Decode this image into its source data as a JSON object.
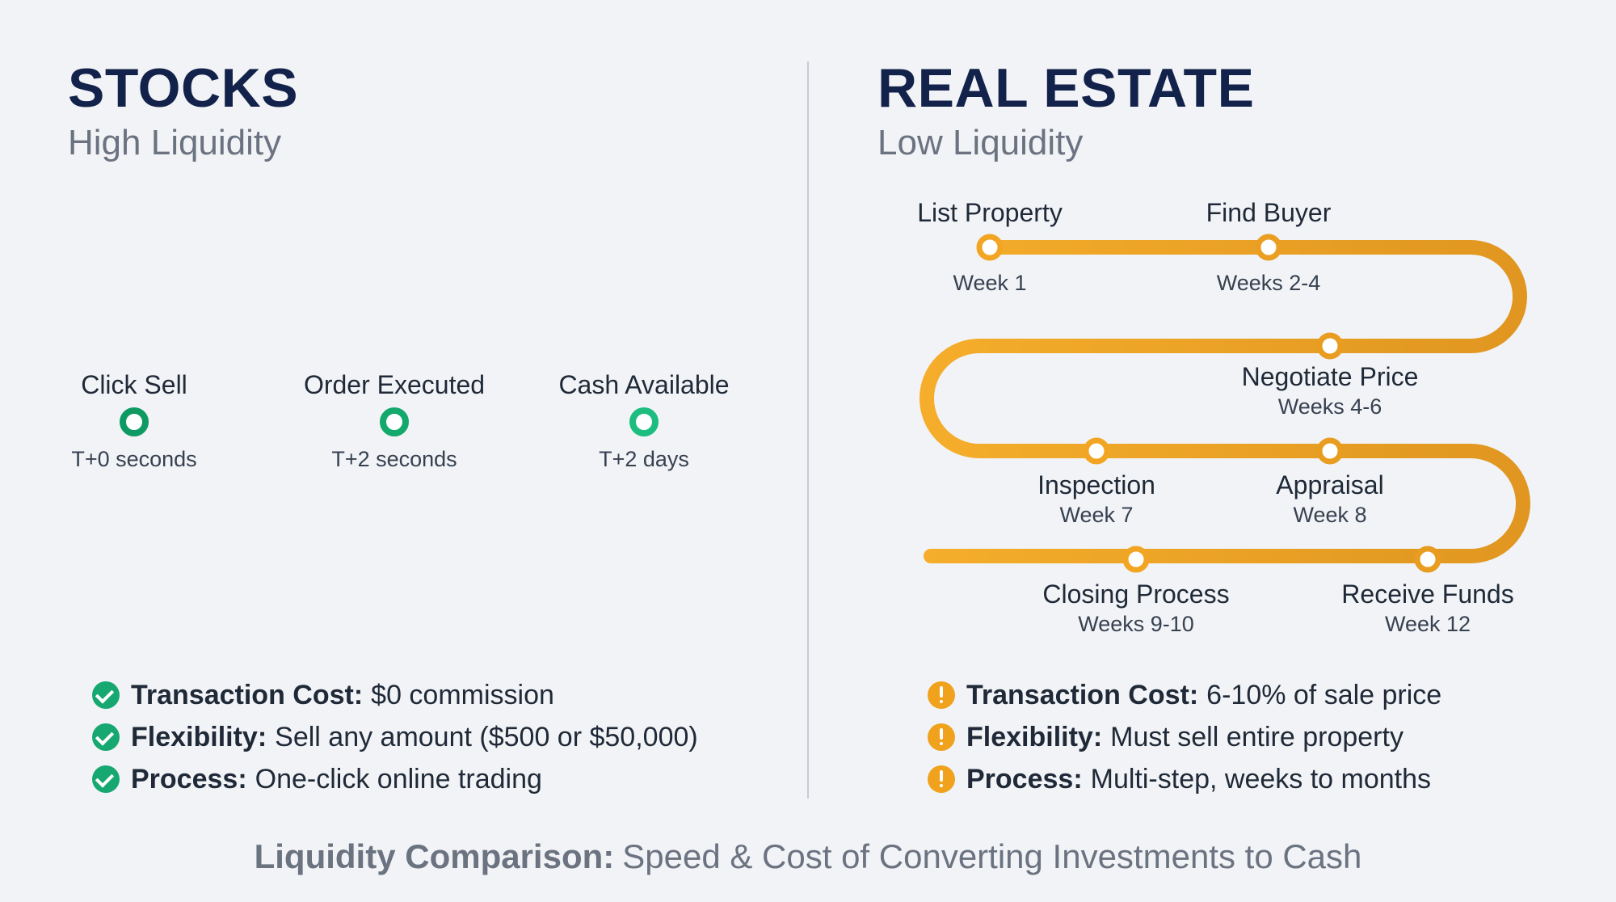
{
  "stocks": {
    "title": "STOCKS",
    "subtitle": "High Liquidity",
    "accent": "#16a870",
    "steps": [
      {
        "label": "Click Sell",
        "time": "T+0 seconds"
      },
      {
        "label": "Order Executed",
        "time": "T+2 seconds"
      },
      {
        "label": "Cash Available",
        "time": "T+2 days"
      }
    ],
    "bullets": [
      {
        "icon": "check-circle-icon",
        "term": "Transaction Cost:",
        "text": "$0 commission"
      },
      {
        "icon": "check-circle-icon",
        "term": "Flexibility:",
        "text": "Sell any amount ($500 or $50,000)"
      },
      {
        "icon": "check-circle-icon",
        "term": "Process:",
        "text": "One-click online trading"
      }
    ]
  },
  "real_estate": {
    "title": "REAL ESTATE",
    "subtitle": "Low Liquidity",
    "accent": "#f0a21c",
    "steps": [
      {
        "label": "List Property",
        "time": "Week 1"
      },
      {
        "label": "Find Buyer",
        "time": "Weeks 2-4"
      },
      {
        "label": "Negotiate Price",
        "time": "Weeks 4-6"
      },
      {
        "label": "Inspection",
        "time": "Week 7"
      },
      {
        "label": "Appraisal",
        "time": "Week 8"
      },
      {
        "label": "Closing Process",
        "time": "Weeks 9-10"
      },
      {
        "label": "Receive Funds",
        "time": "Week 12"
      }
    ],
    "bullets": [
      {
        "icon": "exclamation-circle-icon",
        "term": "Transaction Cost:",
        "text": "6-10% of sale price"
      },
      {
        "icon": "exclamation-circle-icon",
        "term": "Flexibility:",
        "text": "Must sell entire property"
      },
      {
        "icon": "exclamation-circle-icon",
        "term": "Process:",
        "text": "Multi-step, weeks to months"
      }
    ]
  },
  "footer": {
    "term": "Liquidity Comparison:",
    "text": "Speed & Cost of Converting Investments to Cash"
  }
}
